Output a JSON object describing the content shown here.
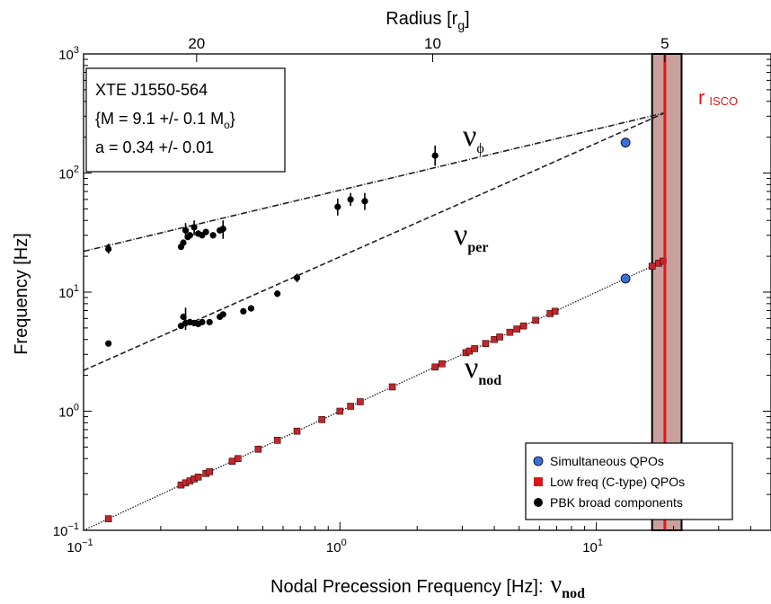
{
  "chart_data": {
    "type": "scatter",
    "title": "",
    "xlabel": "Nodal Precession Frequency [Hz]:",
    "xlabel_symbol": "ν",
    "xlabel_symbol_sub": "nod",
    "ylabel": "Frequency [Hz]",
    "top_axis_label": "Radius [r",
    "top_axis_label_sub": "g",
    "top_axis_label_end": "]",
    "x_scale": "log",
    "y_scale": "log",
    "xlim": [
      0.1,
      48
    ],
    "ylim": [
      0.1,
      1000
    ],
    "x_ticks": [
      {
        "value": 0.1,
        "base": "10",
        "exp": "−1"
      },
      {
        "value": 1,
        "base": "10",
        "exp": "0"
      },
      {
        "value": 10,
        "base": "10",
        "exp": "1"
      }
    ],
    "y_ticks": [
      {
        "value": 0.1,
        "base": "10",
        "exp": "−1"
      },
      {
        "value": 1,
        "base": "10",
        "exp": "0"
      },
      {
        "value": 10,
        "base": "10",
        "exp": "1"
      },
      {
        "value": 100,
        "base": "10",
        "exp": "2"
      },
      {
        "value": 1000,
        "base": "10",
        "exp": "3"
      }
    ],
    "top_ticks": [
      {
        "label": "20",
        "nu_nod": 0.276
      },
      {
        "label": "10",
        "nu_nod": 2.3
      },
      {
        "label": "5",
        "nu_nod": 18.5
      }
    ],
    "info_box": {
      "line1": "XTE J1550-564",
      "line2_prefix": "{M = 9.1 +/- 0.1 M",
      "line2_sub": "o",
      "line2_suffix": "}",
      "line3": "a = 0.34 +/- 0.01"
    },
    "curve_labels": {
      "phi": {
        "symbol": "ν",
        "sub": "ϕ"
      },
      "per": {
        "symbol": "ν",
        "sub": "per"
      },
      "nod": {
        "symbol": "ν",
        "sub": "nod"
      }
    },
    "isco": {
      "label": "r",
      "label_sub": "ISCO",
      "x": 18.5,
      "band": [
        16.5,
        21.5
      ],
      "color": "#e8161b",
      "band_color": "#c9a09c"
    },
    "model_lines": [
      {
        "name": "phi",
        "x": [
          0.1,
          18.5
        ],
        "y": [
          22,
          320
        ]
      },
      {
        "name": "per",
        "x": [
          0.1,
          18.5
        ],
        "y": [
          2.2,
          320
        ]
      },
      {
        "name": "nod",
        "x": [
          0.1,
          18.5
        ],
        "y": [
          0.1,
          18.5
        ]
      }
    ],
    "series": [
      {
        "name": "Simultaneous QPOs",
        "marker": "circle-blue",
        "color": "#3a6fd8",
        "points": [
          [
            13,
            180
          ],
          [
            13,
            13
          ]
        ]
      },
      {
        "name": "Low freq (C-type) QPOs",
        "marker": "square-red",
        "color": "#c0272d",
        "points": [
          [
            0.125,
            0.125
          ],
          [
            0.24,
            0.24
          ],
          [
            0.25,
            0.25
          ],
          [
            0.26,
            0.26
          ],
          [
            0.27,
            0.27
          ],
          [
            0.28,
            0.28
          ],
          [
            0.3,
            0.3
          ],
          [
            0.31,
            0.31
          ],
          [
            0.38,
            0.38
          ],
          [
            0.4,
            0.4
          ],
          [
            0.48,
            0.48
          ],
          [
            0.57,
            0.57
          ],
          [
            0.68,
            0.68
          ],
          [
            0.85,
            0.85
          ],
          [
            1.0,
            1.0
          ],
          [
            1.1,
            1.1
          ],
          [
            1.2,
            1.2
          ],
          [
            1.6,
            1.6
          ],
          [
            2.35,
            2.35
          ],
          [
            2.5,
            2.5
          ],
          [
            3.1,
            3.1
          ],
          [
            3.2,
            3.2
          ],
          [
            3.35,
            3.35
          ],
          [
            3.7,
            3.7
          ],
          [
            4.0,
            4.0
          ],
          [
            4.2,
            4.2
          ],
          [
            4.6,
            4.6
          ],
          [
            4.9,
            4.9
          ],
          [
            5.2,
            5.2
          ],
          [
            5.8,
            5.8
          ],
          [
            6.6,
            6.6
          ],
          [
            6.9,
            6.9
          ],
          [
            16.5,
            16.5
          ],
          [
            17.5,
            17.5
          ],
          [
            18.2,
            18.2
          ]
        ]
      },
      {
        "name": "PBK broad components",
        "marker": "circle-black",
        "color": "#000000",
        "points": [
          [
            0.125,
            23
          ],
          [
            0.24,
            24
          ],
          [
            0.245,
            26
          ],
          [
            0.25,
            33
          ],
          [
            0.255,
            29
          ],
          [
            0.26,
            30
          ],
          [
            0.27,
            35
          ],
          [
            0.28,
            31
          ],
          [
            0.29,
            30
          ],
          [
            0.3,
            32
          ],
          [
            0.32,
            30
          ],
          [
            0.34,
            33
          ],
          [
            0.35,
            34
          ],
          [
            0.98,
            52
          ],
          [
            1.1,
            60
          ],
          [
            1.25,
            58
          ],
          [
            2.35,
            140
          ],
          [
            0.125,
            3.7
          ],
          [
            0.24,
            5.2
          ],
          [
            0.245,
            6.2
          ],
          [
            0.25,
            5.5
          ],
          [
            0.26,
            5.6
          ],
          [
            0.27,
            5.5
          ],
          [
            0.28,
            5.4
          ],
          [
            0.29,
            5.6
          ],
          [
            0.31,
            5.6
          ],
          [
            0.34,
            6.2
          ],
          [
            0.35,
            6.5
          ],
          [
            0.42,
            6.9
          ],
          [
            0.45,
            7.3
          ],
          [
            0.57,
            9.7
          ],
          [
            0.68,
            13.2
          ]
        ]
      }
    ],
    "error_bars": [
      [
        0.125,
        21,
        25.5
      ],
      [
        0.25,
        28,
        38
      ],
      [
        0.27,
        30,
        40
      ],
      [
        0.35,
        28,
        40
      ],
      [
        0.98,
        44,
        61
      ],
      [
        1.1,
        53,
        68
      ],
      [
        1.25,
        49,
        68
      ],
      [
        2.35,
        115,
        170
      ],
      [
        0.25,
        4.8,
        7.4
      ],
      [
        0.68,
        12.1,
        14.3
      ],
      [
        0.57,
        9.1,
        10.3
      ],
      [
        0.125,
        3.5,
        3.9
      ]
    ],
    "legend": {
      "placement": "bottom-right",
      "items": [
        "Simultaneous QPOs",
        "Low freq (C-type) QPOs",
        "PBK broad components"
      ]
    }
  }
}
